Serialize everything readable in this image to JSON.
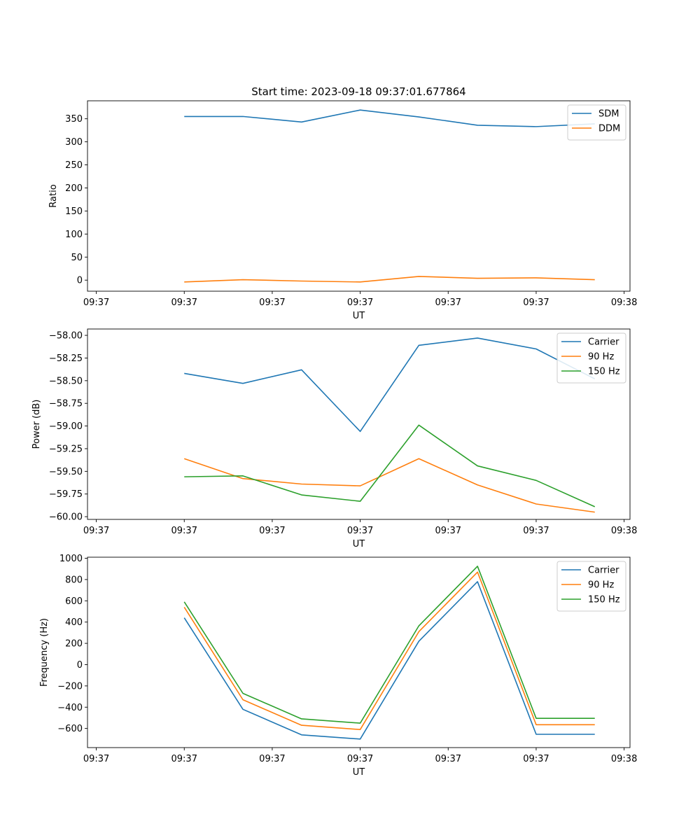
{
  "figure": {
    "title": "Start time: 2023-09-18 09:37:01.677864"
  },
  "chart_data": [
    {
      "type": "line",
      "title": "Start time: 2023-09-18 09:37:01.677864",
      "xlabel": "UT",
      "ylabel": "Ratio",
      "x": [
        1,
        2,
        3,
        4,
        5,
        6,
        7,
        8
      ],
      "xlim": [
        -0.65,
        8.6
      ],
      "xticks": [
        -0.5,
        1,
        2.5,
        4,
        5.5,
        7,
        8.5
      ],
      "xtick_labels": [
        "09:37",
        "09:37",
        "09:37",
        "09:37",
        "09:37",
        "09:37",
        "09:38"
      ],
      "ylim": [
        -24,
        389
      ],
      "yticks": [
        0,
        50,
        100,
        150,
        200,
        250,
        300,
        350
      ],
      "ytick_labels": [
        "0",
        "50",
        "100",
        "150",
        "200",
        "250",
        "300",
        "350"
      ],
      "legend": "top-right",
      "series": [
        {
          "name": "SDM",
          "color": "#1f77b4",
          "values": [
            355,
            355,
            343,
            369,
            354,
            336,
            333,
            339
          ]
        },
        {
          "name": "DDM",
          "color": "#ff7f0e",
          "values": [
            -4,
            1,
            -2,
            -4,
            8,
            4,
            5,
            1
          ]
        }
      ]
    },
    {
      "type": "line",
      "title": "",
      "xlabel": "UT",
      "ylabel": "Power (dB)",
      "x": [
        1,
        2,
        3,
        4,
        5,
        6,
        7,
        8
      ],
      "xlim": [
        -0.65,
        8.6
      ],
      "xticks": [
        -0.5,
        1,
        2.5,
        4,
        5.5,
        7,
        8.5
      ],
      "xtick_labels": [
        "09:37",
        "09:37",
        "09:37",
        "09:37",
        "09:37",
        "09:37",
        "09:38"
      ],
      "ylim": [
        -60.03,
        -57.93
      ],
      "yticks": [
        -60.0,
        -59.75,
        -59.5,
        -59.25,
        -59.0,
        -58.75,
        -58.5,
        -58.25,
        -58.0
      ],
      "ytick_labels": [
        "−60.00",
        "−59.75",
        "−59.50",
        "−59.25",
        "−59.00",
        "−58.75",
        "−58.50",
        "−58.25",
        "−58.00"
      ],
      "legend": "top-right",
      "series": [
        {
          "name": "Carrier",
          "color": "#1f77b4",
          "values": [
            -58.42,
            -58.53,
            -58.38,
            -59.06,
            -58.11,
            -58.03,
            -58.15,
            -58.48
          ]
        },
        {
          "name": "90 Hz",
          "color": "#ff7f0e",
          "values": [
            -59.36,
            -59.58,
            -59.64,
            -59.66,
            -59.36,
            -59.65,
            -59.86,
            -59.95
          ]
        },
        {
          "name": "150 Hz",
          "color": "#2ca02c",
          "values": [
            -59.56,
            -59.55,
            -59.76,
            -59.83,
            -58.99,
            -59.44,
            -59.6,
            -59.89
          ]
        }
      ]
    },
    {
      "type": "line",
      "title": "",
      "xlabel": "UT",
      "ylabel": "Frequency (Hz)",
      "x": [
        1,
        2,
        3,
        4,
        5,
        6,
        7,
        8
      ],
      "xlim": [
        -0.65,
        8.6
      ],
      "xticks": [
        -0.5,
        1,
        2.5,
        4,
        5.5,
        7,
        8.5
      ],
      "xtick_labels": [
        "09:37",
        "09:37",
        "09:37",
        "09:37",
        "09:37",
        "09:37",
        "09:38"
      ],
      "ylim": [
        -780,
        1010
      ],
      "yticks": [
        -600,
        -400,
        -200,
        0,
        200,
        400,
        600,
        800,
        1000
      ],
      "ytick_labels": [
        "−600",
        "−400",
        "−200",
        "0",
        "200",
        "400",
        "600",
        "800",
        "1000"
      ],
      "legend": "top-right",
      "series": [
        {
          "name": "Carrier",
          "color": "#1f77b4",
          "values": [
            440,
            -420,
            -660,
            -700,
            220,
            780,
            -655,
            -655
          ]
        },
        {
          "name": "90 Hz",
          "color": "#ff7f0e",
          "values": [
            540,
            -330,
            -570,
            -610,
            310,
            870,
            -565,
            -565
          ]
        },
        {
          "name": "150 Hz",
          "color": "#2ca02c",
          "values": [
            590,
            -270,
            -510,
            -550,
            365,
            925,
            -505,
            -505
          ]
        }
      ]
    }
  ]
}
